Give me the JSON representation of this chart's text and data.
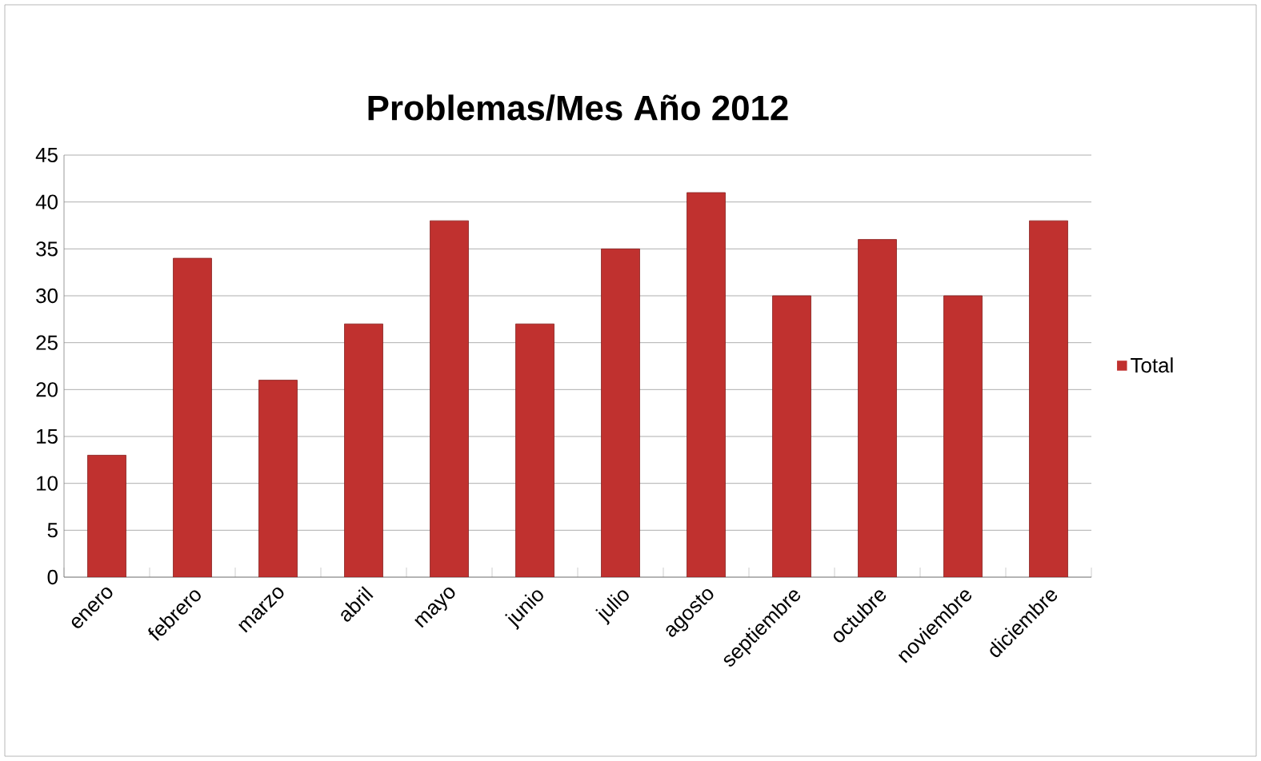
{
  "chart_data": {
    "type": "bar",
    "title": "Problemas/Mes Año 2012",
    "categories": [
      "enero",
      "febrero",
      "marzo",
      "abril",
      "mayo",
      "junio",
      "julio",
      "agosto",
      "septiembre",
      "octubre",
      "noviembre",
      "diciembre"
    ],
    "series": [
      {
        "name": "Total",
        "color": "#c0312f",
        "values": [
          13,
          34,
          21,
          27,
          38,
          27,
          35,
          41,
          30,
          36,
          30,
          38
        ]
      }
    ],
    "ylim": [
      0,
      45
    ],
    "yticks": [
      0,
      5,
      10,
      15,
      20,
      25,
      30,
      35,
      40,
      45
    ],
    "grid": "y",
    "legend": "right"
  }
}
